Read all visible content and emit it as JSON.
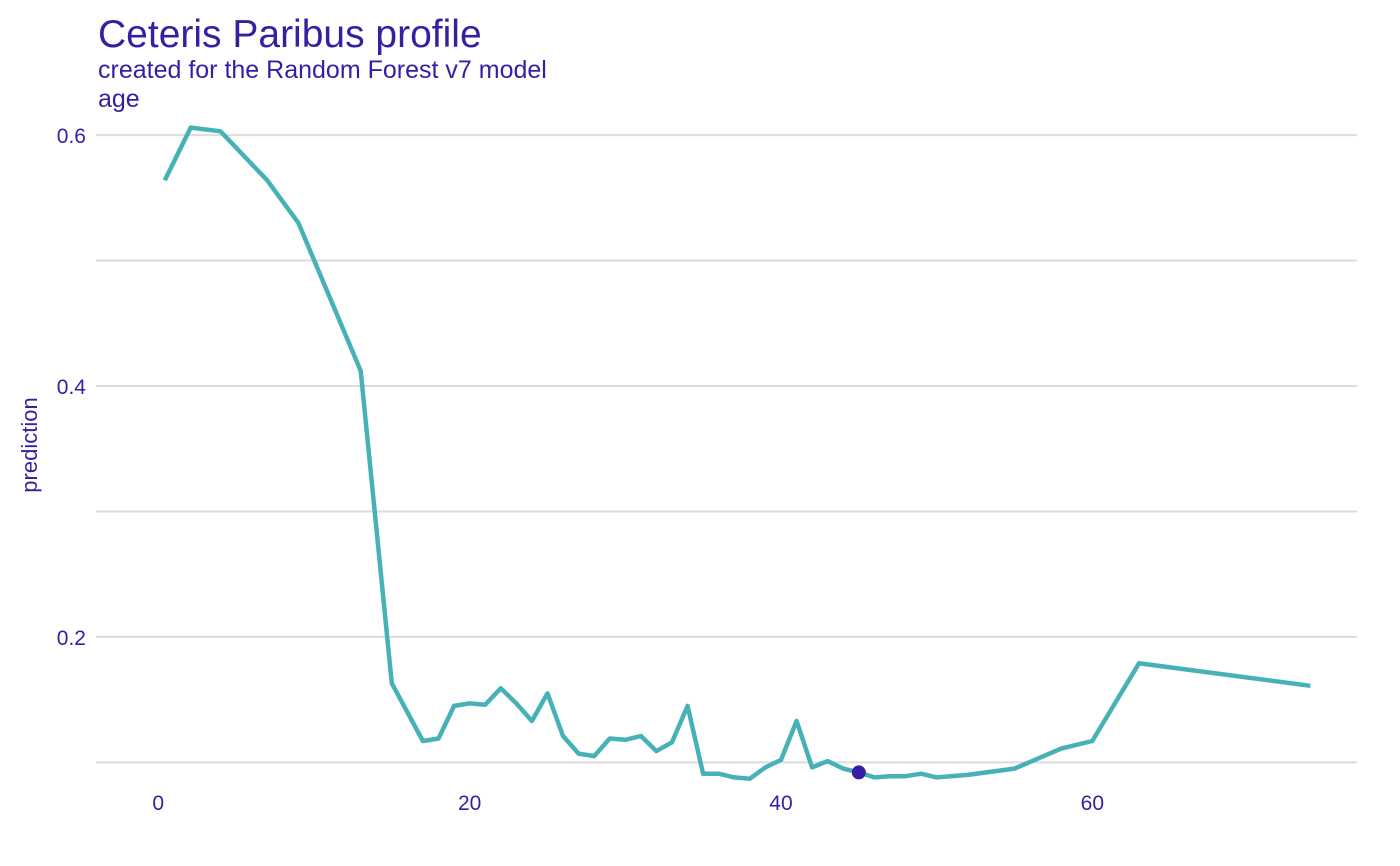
{
  "chart_data": {
    "type": "line",
    "title": "Ceteris Paribus profile",
    "subtitle": "created for the Random Forest v7 model",
    "panel_label": "age",
    "xlabel": "",
    "ylabel": "prediction",
    "xlim": [
      -4,
      77
    ],
    "ylim": [
      0.07,
      0.62
    ],
    "x_ticks": [
      0,
      20,
      40,
      60
    ],
    "y_ticks": [
      0.2,
      0.4,
      0.6
    ],
    "y_ticks_labeled": [
      "0.2",
      "0.4",
      "0.6"
    ],
    "y_gridlines": [
      0.1,
      0.2,
      0.3,
      0.4,
      0.5,
      0.6
    ],
    "grid": "horizontal",
    "legend": "none",
    "colors": {
      "line": "#46b2b8",
      "point": "#371ea3",
      "text": "#371ea3",
      "grid": "#dcdcdc"
    },
    "series": [
      {
        "x": [
          0.42,
          2.08,
          4.0,
          7.0,
          9.0,
          13.0,
          15.0,
          17.0,
          18.0,
          19.0,
          20.0,
          21.0,
          22.0,
          23.0,
          24.0,
          25.0,
          26.0,
          27.0,
          28.0,
          29.0,
          30.0,
          31.0,
          32.0,
          33.0,
          34.0,
          35.0,
          36.0,
          37.0,
          38.0,
          39.0,
          40.0,
          41.0,
          42.0,
          43.0,
          44.0,
          45.0,
          46.0,
          47.0,
          48.0,
          49.0,
          50.0,
          52.0,
          55.0,
          58.0,
          60.0,
          63.0,
          74.0
        ],
        "y": [
          0.564,
          0.606,
          0.603,
          0.564,
          0.53,
          0.412,
          0.163,
          0.117,
          0.119,
          0.145,
          0.147,
          0.146,
          0.159,
          0.147,
          0.133,
          0.155,
          0.121,
          0.107,
          0.105,
          0.119,
          0.118,
          0.121,
          0.109,
          0.116,
          0.145,
          0.091,
          0.091,
          0.088,
          0.087,
          0.096,
          0.102,
          0.133,
          0.096,
          0.101,
          0.095,
          0.092,
          0.088,
          0.089,
          0.089,
          0.091,
          0.088,
          0.09,
          0.095,
          0.111,
          0.117,
          0.179,
          0.161
        ]
      }
    ],
    "observation": {
      "x": 45.0,
      "y": 0.092
    }
  }
}
